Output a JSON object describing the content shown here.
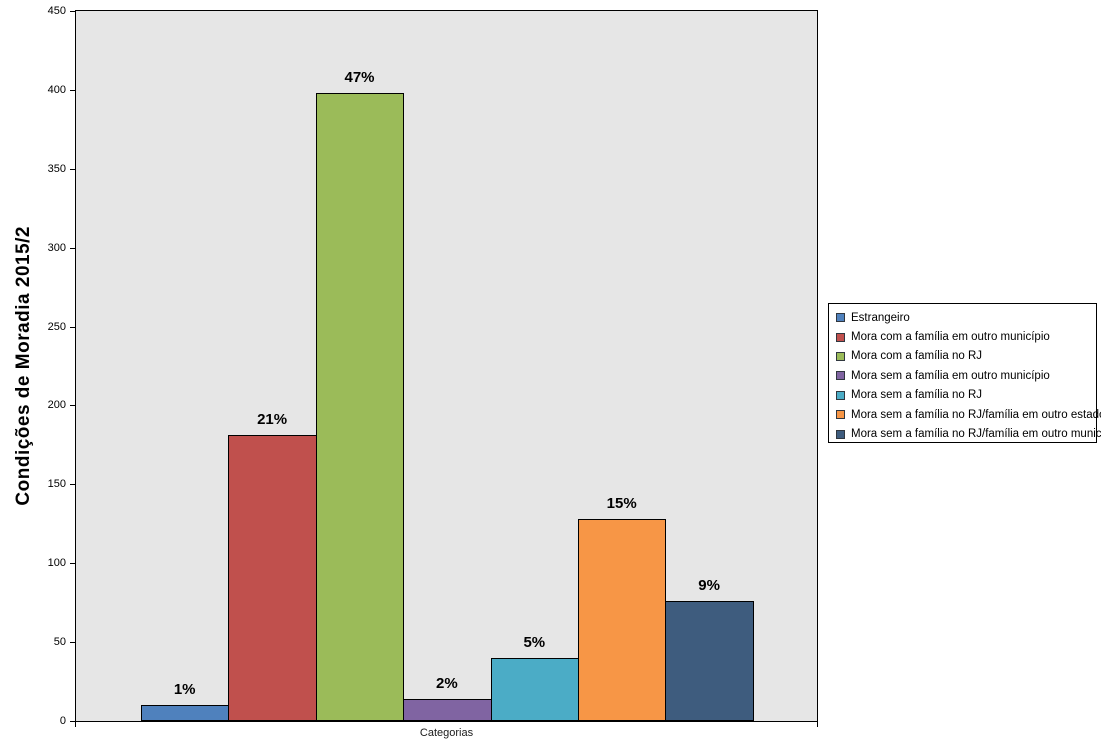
{
  "chart": {
    "y_axis_title": "Condições de Moradia 2015/2",
    "x_axis_title": "Categorias"
  },
  "chart_data": {
    "type": "bar",
    "title": "Condições de Moradia 2015/2",
    "xlabel": "Categorias",
    "ylabel": "Condições de Moradia 2015/2",
    "categories": [
      "Estrangeiro",
      "Mora com a família em outro município",
      "Mora com a família no RJ",
      "Mora sem a família em outro município",
      "Mora sem a família no RJ",
      "Mora sem a família no RJ/família em outro estado",
      "Mora sem a família no RJ/família em outro município"
    ],
    "values": [
      10,
      181,
      398,
      14,
      40,
      128,
      76
    ],
    "data_labels": [
      "1%",
      "21%",
      "47%",
      "2%",
      "5%",
      "15%",
      "9%"
    ],
    "colors": [
      "#4F81BD",
      "#C0504D",
      "#9BBB59",
      "#8064A2",
      "#4BACC6",
      "#F79646",
      "#3E5C7E"
    ],
    "ylim": [
      0,
      450
    ],
    "ytick_step": 50,
    "yticks": [
      0,
      50,
      100,
      150,
      200,
      250,
      300,
      350,
      400,
      450
    ],
    "grid": false,
    "legend_position": "right",
    "plot_background": "#E6E6E6",
    "bar_border_color": "#000000"
  }
}
